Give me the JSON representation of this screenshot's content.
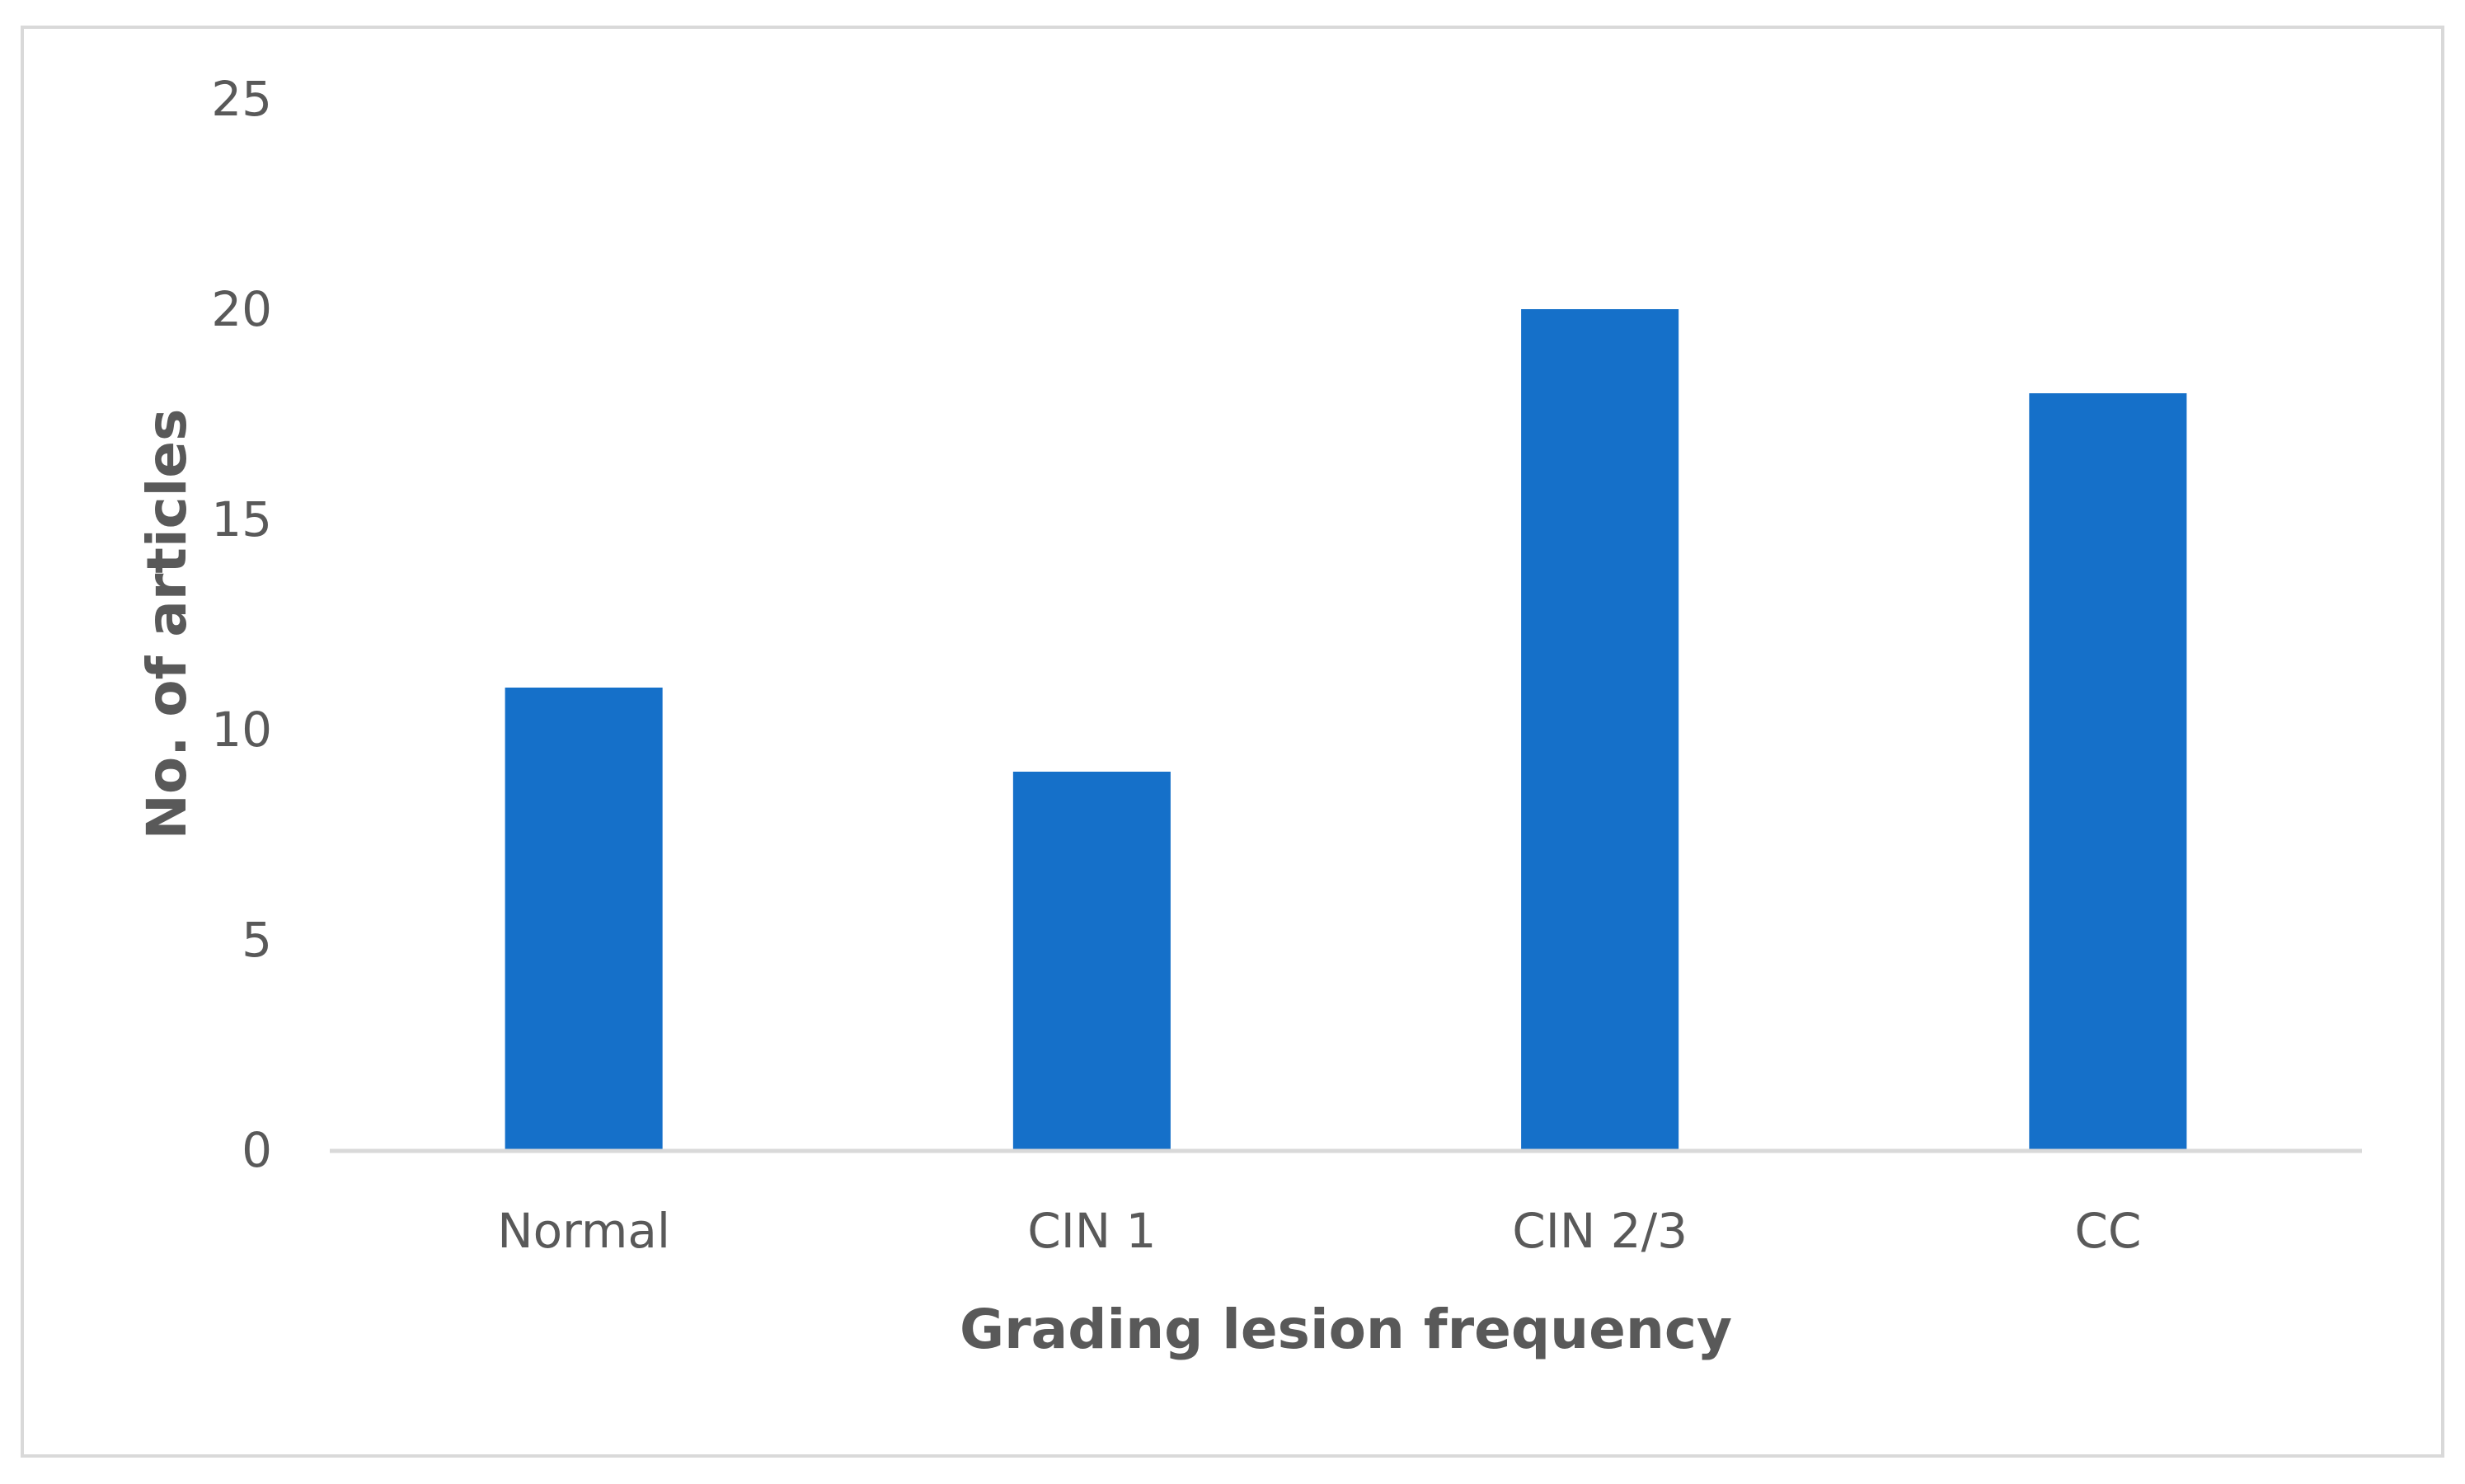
{
  "chart_data": {
    "type": "bar",
    "title": "",
    "categories": [
      "Normal",
      "CIN 1",
      "CIN 2/3",
      "CC"
    ],
    "values": [
      11,
      9,
      20,
      18
    ],
    "xlabel": "Grading lesion frequency",
    "ylabel": "No. of articles",
    "ylim": [
      0,
      25
    ],
    "yticks": [
      0,
      5,
      10,
      15,
      20,
      25
    ],
    "ytick_labels": [
      "0",
      "5",
      "10",
      "15",
      "20",
      "25"
    ],
    "grid": false,
    "legend": "none",
    "bar_color": "#1570C9",
    "axis_color": "#D9D9D9",
    "text_color": "#595959",
    "frame_color": "#D9D9D9"
  }
}
